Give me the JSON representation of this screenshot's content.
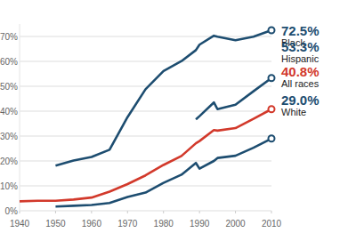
{
  "chart_data": {
    "type": "line",
    "x": [
      1940,
      1945,
      1950,
      1955,
      1960,
      1965,
      1970,
      1975,
      1980,
      1985,
      1989,
      1990,
      1994,
      1995,
      2000,
      2005,
      2010
    ],
    "series": [
      {
        "name": "Black",
        "color": "#1d4d70",
        "marker": "circle",
        "values": [
          null,
          null,
          18.1,
          20.2,
          21.6,
          24.5,
          37.6,
          48.8,
          56.1,
          60.1,
          64.5,
          66.7,
          70.3,
          69.9,
          68.5,
          69.9,
          72.5
        ],
        "value_labels": [
          null,
          null,
          null,
          null,
          null,
          null,
          null,
          null,
          null,
          null,
          null,
          null,
          null,
          null,
          null,
          null,
          "72.5%"
        ]
      },
      {
        "name": "Hispanic",
        "color": "#1d4d70",
        "marker": "circle",
        "values": [
          null,
          null,
          null,
          null,
          null,
          null,
          null,
          null,
          null,
          null,
          36.7,
          38.0,
          43.5,
          40.8,
          42.6,
          48.0,
          53.3
        ],
        "value_labels": [
          null,
          null,
          null,
          null,
          null,
          null,
          null,
          null,
          null,
          null,
          null,
          null,
          null,
          null,
          null,
          null,
          "53.3%"
        ]
      },
      {
        "name": "All races",
        "color": "#d2392b",
        "marker": "circle",
        "values": [
          3.8,
          4.0,
          4.0,
          4.5,
          5.3,
          7.7,
          10.7,
          14.2,
          18.4,
          22.0,
          27.1,
          28.0,
          32.4,
          32.2,
          33.2,
          36.9,
          40.8
        ],
        "value_labels": [
          null,
          null,
          null,
          null,
          null,
          null,
          null,
          null,
          null,
          null,
          null,
          null,
          null,
          null,
          null,
          null,
          "40.8%"
        ]
      },
      {
        "name": "White",
        "color": "#1d4d70",
        "marker": "circle",
        "values": [
          null,
          null,
          1.7,
          2.0,
          2.3,
          3.1,
          5.5,
          7.3,
          11.2,
          14.5,
          19.2,
          16.9,
          20.0,
          21.2,
          22.1,
          25.3,
          29.0
        ],
        "value_labels": [
          null,
          null,
          null,
          null,
          null,
          null,
          null,
          null,
          null,
          null,
          null,
          null,
          null,
          null,
          null,
          null,
          "29.0%"
        ]
      }
    ],
    "xlim": [
      1940,
      2010
    ],
    "xticks": [
      1940,
      1950,
      1960,
      1970,
      1980,
      1990,
      2000,
      2010
    ],
    "ylim": [
      0,
      75
    ],
    "yticks": [
      {
        "value": 0,
        "label": "0%"
      },
      {
        "value": 10,
        "label": "10%"
      },
      {
        "value": 20,
        "label": "20%"
      },
      {
        "value": 30,
        "label": "30%"
      },
      {
        "value": 40,
        "label": "40%"
      },
      {
        "value": 50,
        "label": "50%"
      },
      {
        "value": 60,
        "label": "60%"
      },
      {
        "value": 70,
        "label": "70%"
      }
    ],
    "grid": true
  }
}
